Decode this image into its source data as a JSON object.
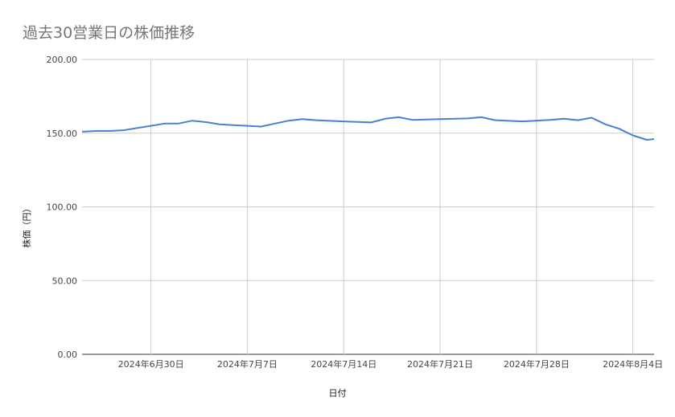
{
  "chart_data": {
    "type": "line",
    "title": "過去30営業日の株価推移",
    "xlabel": "日付",
    "ylabel": "株価（円）",
    "ylim": [
      0,
      200
    ],
    "yticks": [
      "0.00",
      "50.00",
      "100.00",
      "150.00",
      "200.00"
    ],
    "x_range": [
      "2024-06-25",
      "2024-08-05"
    ],
    "xticks": [
      {
        "date": "2024-06-30",
        "label": "2024年6月30日"
      },
      {
        "date": "2024-07-07",
        "label": "2024年7月7日"
      },
      {
        "date": "2024-07-14",
        "label": "2024年7月14日"
      },
      {
        "date": "2024-07-21",
        "label": "2024年7月21日"
      },
      {
        "date": "2024-07-28",
        "label": "2024年7月28日"
      },
      {
        "date": "2024-08-04",
        "label": "2024年8月4日"
      }
    ],
    "grid": true,
    "legend": "none",
    "series": [
      {
        "color": "#4a7fd4",
        "points": [
          {
            "x": "2024-06-25",
            "y": 151.0
          },
          {
            "x": "2024-06-26",
            "y": 151.5
          },
          {
            "x": "2024-06-27",
            "y": 151.5
          },
          {
            "x": "2024-06-28",
            "y": 152.0
          },
          {
            "x": "2024-06-29",
            "y": 153.5
          },
          {
            "x": "2024-06-30",
            "y": 155.0
          },
          {
            "x": "2024-07-01",
            "y": 156.5
          },
          {
            "x": "2024-07-02",
            "y": 156.5
          },
          {
            "x": "2024-07-03",
            "y": 158.5
          },
          {
            "x": "2024-07-04",
            "y": 157.5
          },
          {
            "x": "2024-07-05",
            "y": 156.0
          },
          {
            "x": "2024-07-06",
            "y": 155.5
          },
          {
            "x": "2024-07-07",
            "y": 155.0
          },
          {
            "x": "2024-07-08",
            "y": 154.5
          },
          {
            "x": "2024-07-09",
            "y": 156.5
          },
          {
            "x": "2024-07-10",
            "y": 158.5
          },
          {
            "x": "2024-07-11",
            "y": 159.5
          },
          {
            "x": "2024-07-12",
            "y": 158.8
          },
          {
            "x": "2024-07-14",
            "y": 158.0
          },
          {
            "x": "2024-07-16",
            "y": 157.3
          },
          {
            "x": "2024-07-17",
            "y": 159.8
          },
          {
            "x": "2024-07-18",
            "y": 160.8
          },
          {
            "x": "2024-07-19",
            "y": 159.0
          },
          {
            "x": "2024-07-21",
            "y": 159.5
          },
          {
            "x": "2024-07-23",
            "y": 160.0
          },
          {
            "x": "2024-07-24",
            "y": 160.8
          },
          {
            "x": "2024-07-25",
            "y": 158.8
          },
          {
            "x": "2024-07-27",
            "y": 158.0
          },
          {
            "x": "2024-07-29",
            "y": 159.0
          },
          {
            "x": "2024-07-30",
            "y": 159.8
          },
          {
            "x": "2024-07-31",
            "y": 158.8
          },
          {
            "x": "2024-08-01",
            "y": 160.5
          },
          {
            "x": "2024-08-02",
            "y": 156.0
          },
          {
            "x": "2024-08-03",
            "y": 153.0
          },
          {
            "x": "2024-08-04",
            "y": 148.5
          },
          {
            "x": "2024-08-05",
            "y": 145.5
          },
          {
            "x": "2024-08-05",
            "y": 146.0
          }
        ]
      }
    ]
  }
}
